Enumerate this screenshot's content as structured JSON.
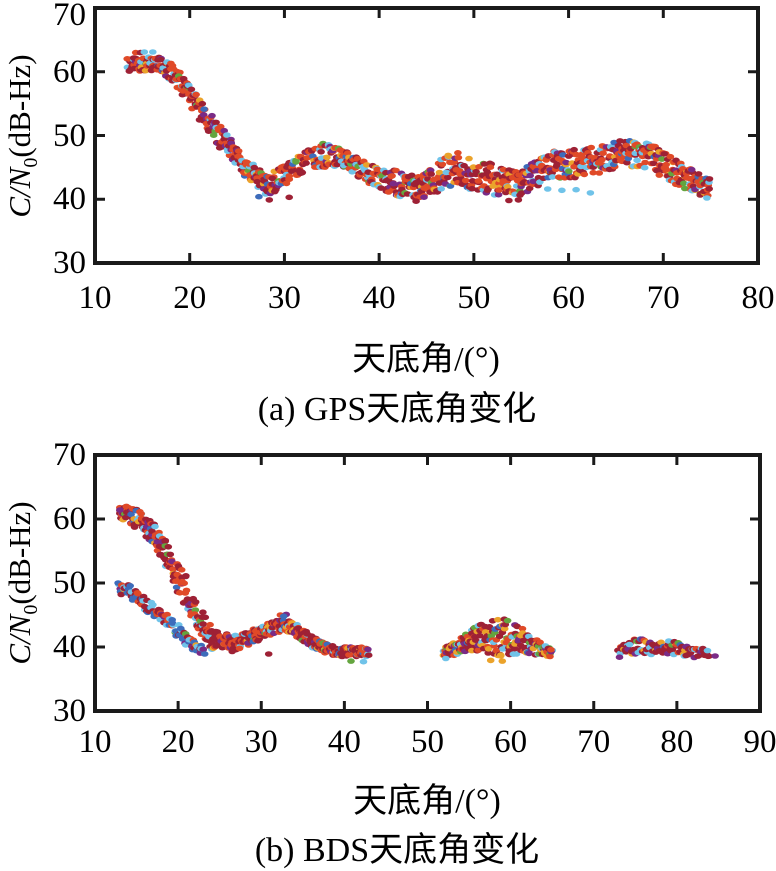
{
  "palette": {
    "crimson": "#9e2135",
    "orangered": "#e04a28",
    "skyblue": "#70c3e9",
    "gold": "#eba32b",
    "purple": "#7a2b86",
    "blue": "#3d6cbb",
    "green": "#64a53f"
  },
  "chart_data": [
    {
      "type": "scatter",
      "panel": "a",
      "title": "(a) GPS天底角变化",
      "xlabel": "天底角/(°)",
      "ylabel": "C/N0(dB-Hz)",
      "ylabel_parts": {
        "ratio": "C/N",
        "sub": "0",
        "unit": "(dB-Hz)"
      },
      "xlim": [
        10,
        80
      ],
      "ylim": [
        30,
        70
      ],
      "xticks": [
        10,
        20,
        30,
        40,
        50,
        60,
        70,
        80
      ],
      "yticks": [
        30,
        40,
        50,
        60,
        70
      ],
      "grid": false,
      "legend": false,
      "marker": "horizontal-ellipse-dash",
      "bands": [
        {
          "name": "GPS satellites C/N0 envelope (lo/hi dB-Hz vs nadir angle)",
          "step": 0.18,
          "dots_per_step": 3,
          "color_weights": {
            "crimson": 0.33,
            "orangered": 0.33,
            "skyblue": 0.12,
            "purple": 0.08,
            "gold": 0.06,
            "green": 0.04,
            "blue": 0.04
          },
          "envelope": [
            [
              13.5,
              60,
              62.3
            ],
            [
              17,
              60,
              62.3
            ],
            [
              18,
              58.5,
              61.8
            ],
            [
              19,
              56.5,
              60
            ],
            [
              20,
              54.5,
              58
            ],
            [
              21,
              52.5,
              56
            ],
            [
              22,
              50.5,
              54
            ],
            [
              23,
              48.5,
              52
            ],
            [
              24,
              46.5,
              50
            ],
            [
              25,
              44.8,
              48
            ],
            [
              26,
              43.2,
              46.5
            ],
            [
              27,
              41.8,
              45
            ],
            [
              28,
              40.8,
              44.3
            ],
            [
              29,
              41,
              44.6
            ],
            [
              30,
              42,
              45.3
            ],
            [
              31,
              43.3,
              46.3
            ],
            [
              32,
              44.3,
              47.5
            ],
            [
              33,
              44.8,
              48.3
            ],
            [
              34,
              45,
              48.8
            ],
            [
              35,
              45,
              48.8
            ],
            [
              36,
              44.8,
              48.3
            ],
            [
              37,
              44.3,
              47.3
            ],
            [
              38,
              43.3,
              46.3
            ],
            [
              39,
              42.3,
              45.5
            ],
            [
              40,
              41.8,
              45
            ],
            [
              41,
              41,
              45
            ],
            [
              42,
              40.5,
              44.5
            ],
            [
              43,
              40.3,
              44
            ],
            [
              44,
              40,
              44
            ],
            [
              45,
              40.3,
              44.3
            ],
            [
              46,
              41,
              45.3
            ],
            [
              47,
              42,
              47
            ],
            [
              48,
              42,
              47.5
            ],
            [
              49,
              41.5,
              47
            ],
            [
              50,
              41.5,
              46.5
            ],
            [
              51,
              41,
              46
            ],
            [
              52,
              40.5,
              45.5
            ],
            [
              53,
              40.3,
              45
            ],
            [
              54,
              40,
              44.5
            ],
            [
              55,
              40.3,
              44.5
            ],
            [
              56,
              41,
              45.5
            ],
            [
              57,
              42.5,
              46.5
            ],
            [
              58,
              43.3,
              47.3
            ],
            [
              59,
              43.3,
              47.8
            ],
            [
              60,
              43.3,
              47.8
            ],
            [
              61,
              43.3,
              47.8
            ],
            [
              62,
              43.5,
              48
            ],
            [
              63,
              44,
              48.3
            ],
            [
              64,
              44.5,
              48.8
            ],
            [
              65,
              44.8,
              49
            ],
            [
              66,
              45,
              49.3
            ],
            [
              67,
              45,
              49.3
            ],
            [
              68,
              44.5,
              49
            ],
            [
              69,
              44,
              48.5
            ],
            [
              70,
              43.5,
              47.5
            ],
            [
              71,
              42.5,
              46.5
            ],
            [
              72,
              41.8,
              45.5
            ],
            [
              73,
              41,
              45
            ],
            [
              74,
              40.5,
              44
            ],
            [
              75,
              40.3,
              43.3
            ]
          ]
        }
      ],
      "extra_points": [
        [
          14.3,
          63.0,
          "orangered"
        ],
        [
          14.8,
          63.0,
          "crimson"
        ],
        [
          15.2,
          63.1,
          "skyblue"
        ],
        [
          16.1,
          63.1,
          "skyblue"
        ],
        [
          19.3,
          57.0,
          "orangered"
        ],
        [
          27.3,
          40.4,
          "blue"
        ],
        [
          28.4,
          39.9,
          "crimson"
        ],
        [
          30.5,
          40.3,
          "crimson"
        ],
        [
          43.9,
          39.7,
          "crimson"
        ],
        [
          53.7,
          39.8,
          "crimson"
        ],
        [
          54.7,
          39.9,
          "crimson"
        ],
        [
          57.8,
          41.6,
          "skyblue"
        ],
        [
          59.3,
          41.4,
          "skyblue"
        ],
        [
          60.8,
          41.5,
          "skyblue"
        ],
        [
          62.3,
          41.0,
          "skyblue"
        ],
        [
          74.6,
          40.2,
          "skyblue"
        ]
      ]
    },
    {
      "type": "scatter",
      "panel": "b",
      "title": "(b) BDS天底角变化",
      "xlabel": "天底角/(°)",
      "ylabel": "C/N0(dB-Hz)",
      "ylabel_parts": {
        "ratio": "C/N",
        "sub": "0",
        "unit": "(dB-Hz)"
      },
      "xlim": [
        10,
        90
      ],
      "ylim": [
        30,
        70
      ],
      "xticks": [
        10,
        20,
        30,
        40,
        50,
        60,
        70,
        80,
        90
      ],
      "yticks": [
        30,
        40,
        50,
        60,
        70
      ],
      "grid": false,
      "legend": false,
      "marker": "horizontal-ellipse-dash",
      "bands": [
        {
          "name": "BDS upper branch: descent 62->39 dB-Hz, hump near 32deg, flat tail to 43deg",
          "step": 0.18,
          "dots_per_step": 3,
          "color_weights": {
            "crimson": 0.44,
            "orangered": 0.3,
            "skyblue": 0.08,
            "purple": 0.06,
            "gold": 0.05,
            "green": 0.04,
            "blue": 0.03
          },
          "envelope": [
            [
              13,
              60,
              62
            ],
            [
              14,
              59.5,
              62
            ],
            [
              15,
              58.5,
              61.5
            ],
            [
              16,
              57.5,
              60.5
            ],
            [
              17,
              56,
              59.5
            ],
            [
              18,
              54,
              57.5
            ],
            [
              19,
              51.5,
              55.5
            ],
            [
              20,
              48.5,
              53.5
            ],
            [
              21,
              46,
              51
            ],
            [
              22,
              43.5,
              48
            ],
            [
              23,
              41,
              45.5
            ],
            [
              24,
              39.5,
              43
            ],
            [
              25,
              39.8,
              42.3
            ],
            [
              26,
              39.8,
              42
            ],
            [
              27,
              39.5,
              41.8
            ],
            [
              28,
              40,
              42.3
            ],
            [
              29,
              40.5,
              42.8
            ],
            [
              30,
              41.3,
              43.3
            ],
            [
              31,
              41.8,
              43.8
            ],
            [
              32,
              42.3,
              44.3
            ],
            [
              33,
              42.3,
              44.3
            ],
            [
              34,
              41.8,
              43.8
            ],
            [
              35,
              40.8,
              42.8
            ],
            [
              36,
              40,
              42
            ],
            [
              37,
              39.3,
              41
            ],
            [
              38,
              38.8,
              40.5
            ],
            [
              39,
              38.5,
              40
            ],
            [
              40,
              38.5,
              40
            ],
            [
              41,
              38.5,
              40
            ],
            [
              42,
              38.5,
              40
            ],
            [
              43,
              38.5,
              39.8
            ]
          ]
        },
        {
          "name": "BDS lower branch: descent 50->39 dB-Hz over 13-23deg",
          "step": 0.2,
          "dots_per_step": 2,
          "color_weights": {
            "blue": 0.34,
            "skyblue": 0.18,
            "crimson": 0.26,
            "orangered": 0.12,
            "purple": 0.05,
            "green": 0.03,
            "gold": 0.02
          },
          "envelope": [
            [
              12.8,
              48.3,
              50
            ],
            [
              14,
              47.8,
              49.8
            ],
            [
              15,
              46.8,
              48.8
            ],
            [
              16,
              45.8,
              47.8
            ],
            [
              17,
              44.8,
              46.8
            ],
            [
              18,
              43.8,
              45.8
            ],
            [
              19,
              42.5,
              44.8
            ],
            [
              20,
              41.3,
              43.5
            ],
            [
              21,
              40.3,
              42.3
            ],
            [
              22,
              39.3,
              41.3
            ],
            [
              23,
              38.8,
              40
            ]
          ]
        },
        {
          "name": "BDS cluster 52-65deg: pyramid peaking ~44.5 dB-Hz near 58deg",
          "step": 0.18,
          "dots_per_step": 3,
          "color_weights": {
            "crimson": 0.36,
            "orangered": 0.15,
            "gold": 0.16,
            "skyblue": 0.12,
            "green": 0.09,
            "purple": 0.07,
            "blue": 0.05
          },
          "envelope": [
            [
              52,
              38.5,
              40
            ],
            [
              53,
              38.5,
              40.8
            ],
            [
              54,
              38.7,
              41.5
            ],
            [
              55,
              39,
              42.5
            ],
            [
              56,
              39,
              43.3
            ],
            [
              57,
              38.6,
              44.3
            ],
            [
              58,
              38.5,
              44.5
            ],
            [
              59,
              38.5,
              44.5
            ],
            [
              60,
              38.6,
              44
            ],
            [
              61,
              38.8,
              43.3
            ],
            [
              62,
              39,
              42.3
            ],
            [
              63,
              38.7,
              41.3
            ],
            [
              64,
              38.6,
              40.5
            ],
            [
              65,
              38.5,
              39.8
            ]
          ]
        },
        {
          "name": "BDS cluster 73-84deg: flat rows 38.5-41.5 dB-Hz",
          "step": 0.2,
          "dots_per_step": 2,
          "color_weights": {
            "crimson": 0.54,
            "purple": 0.12,
            "skyblue": 0.1,
            "orangered": 0.1,
            "gold": 0.09,
            "blue": 0.03,
            "green": 0.02
          },
          "envelope": [
            [
              73,
              39,
              40.3
            ],
            [
              74,
              38.8,
              40.8
            ],
            [
              75,
              38.8,
              41.3
            ],
            [
              76,
              38.8,
              41.3
            ],
            [
              77,
              38.8,
              41.3
            ],
            [
              78,
              38.8,
              41.3
            ],
            [
              79,
              38.8,
              41
            ],
            [
              80,
              38.8,
              41
            ],
            [
              81,
              38.5,
              40.3
            ],
            [
              82,
              38.3,
              40
            ],
            [
              83,
              38.5,
              40
            ],
            [
              84,
              38.5,
              39.8
            ]
          ]
        }
      ],
      "extra_points": [
        [
          13.0,
          61.4,
          "purple"
        ],
        [
          23.2,
          38.9,
          "blue"
        ],
        [
          26.5,
          39.3,
          "crimson"
        ],
        [
          30.9,
          38.9,
          "crimson"
        ],
        [
          32.3,
          45.0,
          "orangered"
        ],
        [
          33.0,
          45.1,
          "purple"
        ],
        [
          32.7,
          44.8,
          "blue"
        ],
        [
          40.8,
          37.8,
          "green"
        ],
        [
          42.3,
          37.7,
          "skyblue"
        ],
        [
          52.2,
          38.2,
          "skyblue"
        ],
        [
          57.6,
          37.9,
          "gold"
        ],
        [
          59.0,
          37.8,
          "gold"
        ],
        [
          73.1,
          38.4,
          "purple"
        ],
        [
          84.6,
          38.6,
          "purple"
        ]
      ]
    }
  ]
}
